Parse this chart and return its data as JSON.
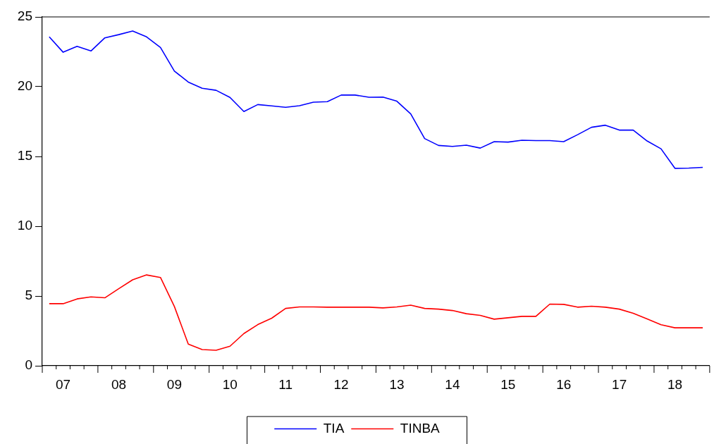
{
  "chart_data": {
    "type": "line",
    "categories": [
      null,
      "07",
      null,
      null,
      null,
      "08",
      null,
      null,
      null,
      "09",
      null,
      null,
      null,
      "10",
      null,
      null,
      null,
      "11",
      null,
      null,
      null,
      "12",
      null,
      null,
      null,
      "13",
      null,
      null,
      null,
      "14",
      null,
      null,
      null,
      "15",
      null,
      null,
      null,
      "16",
      null,
      null,
      null,
      "17",
      null,
      null,
      null,
      "18",
      null,
      null
    ],
    "series": [
      {
        "name": "TIA",
        "color": "#0000ff",
        "values": [
          23.57,
          22.47,
          22.89,
          22.56,
          23.5,
          23.73,
          23.99,
          23.57,
          22.81,
          21.12,
          20.33,
          19.89,
          19.74,
          19.23,
          18.22,
          18.72,
          18.62,
          18.52,
          18.64,
          18.89,
          18.93,
          19.4,
          19.4,
          19.24,
          19.25,
          18.96,
          18.05,
          16.28,
          15.79,
          15.72,
          15.81,
          15.6,
          16.06,
          16.03,
          16.16,
          16.14,
          16.14,
          16.06,
          16.56,
          17.09,
          17.24,
          16.89,
          16.89,
          16.11,
          15.55,
          14.15,
          14.17,
          14.22
        ]
      },
      {
        "name": "TINBA",
        "color": "#ff0000",
        "values": [
          4.45,
          4.45,
          4.79,
          4.94,
          4.87,
          5.52,
          6.16,
          6.51,
          6.33,
          4.25,
          1.55,
          1.16,
          1.11,
          1.4,
          2.31,
          2.95,
          3.41,
          4.11,
          4.22,
          4.22,
          4.2,
          4.2,
          4.2,
          4.2,
          4.15,
          4.22,
          4.34,
          4.11,
          4.06,
          3.96,
          3.73,
          3.61,
          3.34,
          3.44,
          3.54,
          3.54,
          4.42,
          4.4,
          4.2,
          4.27,
          4.2,
          4.06,
          3.76,
          3.36,
          2.94,
          2.72,
          2.72,
          2.72
        ]
      }
    ],
    "ylim": [
      0,
      25
    ],
    "yticks": [
      0,
      5,
      10,
      15,
      20,
      25
    ],
    "grid": false,
    "legend": "bottom",
    "marker": "none",
    "line_style": "solid"
  }
}
